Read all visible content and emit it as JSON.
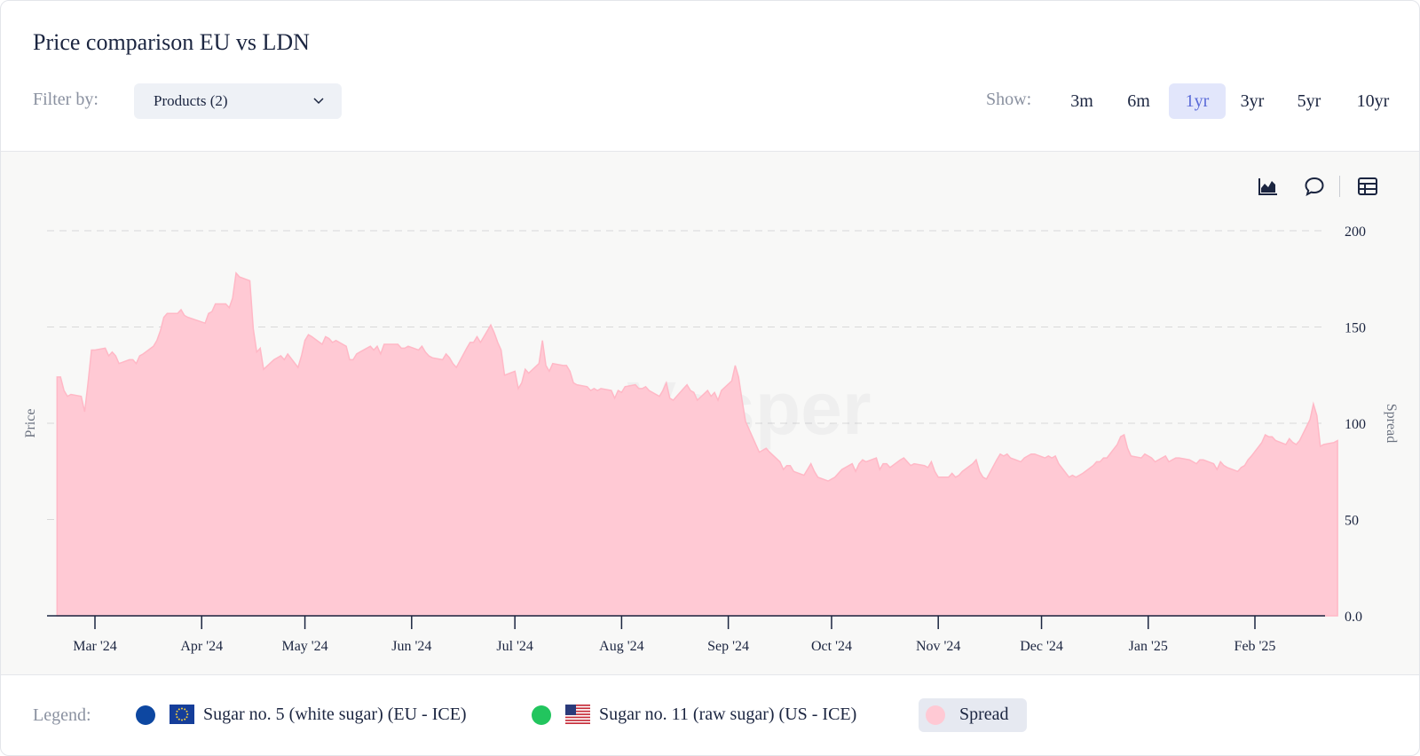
{
  "header": {
    "title": "Price comparison EU vs LDN",
    "filter_label": "Filter by:",
    "filter_value": "Products (2)",
    "show_label": "Show:",
    "ranges": [
      "3m",
      "6m",
      "1yr",
      "3yr",
      "5yr",
      "10yr"
    ],
    "active_range": "1yr"
  },
  "toolbar": {
    "icons": [
      "area-chart-icon",
      "comment-icon",
      "table-icon"
    ]
  },
  "legend": {
    "label": "Legend:",
    "items": [
      {
        "label": "Sugar no. 5 (white sugar) (EU - ICE)",
        "color": "#0d47a1",
        "flag": "eu-flag-icon"
      },
      {
        "label": "Sugar no. 11 (raw sugar) (US - ICE)",
        "color": "#22c55e",
        "flag": "us-flag-icon"
      },
      {
        "label": "Spread",
        "color": "#ffc9d4"
      }
    ]
  },
  "watermark": "Vesper",
  "chart_data": {
    "type": "area",
    "ylabel_left": "Price",
    "ylabel_right": "Spread",
    "ylim": [
      0,
      200
    ],
    "yticks": [
      "0.0",
      "50",
      "100",
      "150",
      "200"
    ],
    "grid": true,
    "xticks": [
      "Mar '24",
      "Apr '24",
      "May '24",
      "Jun '24",
      "Jul '24",
      "Aug '24",
      "Sep '24",
      "Oct '24",
      "Nov '24",
      "Dec '24",
      "Jan '25",
      "Feb '25"
    ],
    "series": [
      {
        "name": "Spread",
        "color": "#ffc9d4",
        "points": [
          [
            "2024-02-19",
            124
          ],
          [
            "2024-02-20",
            124
          ],
          [
            "2024-02-21",
            117
          ],
          [
            "2024-02-22",
            114
          ],
          [
            "2024-02-23",
            115
          ],
          [
            "2024-02-26",
            114
          ],
          [
            "2024-02-27",
            106
          ],
          [
            "2024-02-28",
            121
          ],
          [
            "2024-02-29",
            138
          ],
          [
            "2024-03-01",
            138
          ],
          [
            "2024-03-04",
            139
          ],
          [
            "2024-03-05",
            135
          ],
          [
            "2024-03-06",
            137
          ],
          [
            "2024-03-07",
            135
          ],
          [
            "2024-03-08",
            131
          ],
          [
            "2024-03-11",
            133
          ],
          [
            "2024-03-12",
            133
          ],
          [
            "2024-03-13",
            131
          ],
          [
            "2024-03-14",
            135
          ],
          [
            "2024-03-15",
            136
          ],
          [
            "2024-03-18",
            140
          ],
          [
            "2024-03-19",
            143
          ],
          [
            "2024-03-20",
            148
          ],
          [
            "2024-03-21",
            155
          ],
          [
            "2024-03-22",
            157
          ],
          [
            "2024-03-25",
            157
          ],
          [
            "2024-03-26",
            159
          ],
          [
            "2024-03-27",
            156
          ],
          [
            "2024-03-28",
            155
          ],
          [
            "2024-04-02",
            152
          ],
          [
            "2024-04-03",
            157
          ],
          [
            "2024-04-04",
            158
          ],
          [
            "2024-04-05",
            162
          ],
          [
            "2024-04-08",
            162
          ],
          [
            "2024-04-09",
            160
          ],
          [
            "2024-04-10",
            165
          ],
          [
            "2024-04-11",
            178
          ],
          [
            "2024-04-12",
            176
          ],
          [
            "2024-04-15",
            174
          ],
          [
            "2024-04-16",
            149
          ],
          [
            "2024-04-17",
            137
          ],
          [
            "2024-04-18",
            139
          ],
          [
            "2024-04-19",
            128
          ],
          [
            "2024-04-22",
            133
          ],
          [
            "2024-04-23",
            134
          ],
          [
            "2024-04-24",
            135
          ],
          [
            "2024-04-25",
            133
          ],
          [
            "2024-04-26",
            136
          ],
          [
            "2024-04-29",
            129
          ],
          [
            "2024-04-30",
            135
          ],
          [
            "2024-05-01",
            143
          ],
          [
            "2024-05-02",
            146
          ],
          [
            "2024-05-03",
            145
          ],
          [
            "2024-05-06",
            141
          ],
          [
            "2024-05-07",
            145
          ],
          [
            "2024-05-08",
            144
          ],
          [
            "2024-05-09",
            142
          ],
          [
            "2024-05-10",
            143
          ],
          [
            "2024-05-13",
            140
          ],
          [
            "2024-05-14",
            133
          ],
          [
            "2024-05-15",
            133
          ],
          [
            "2024-05-16",
            136
          ],
          [
            "2024-05-17",
            137
          ],
          [
            "2024-05-20",
            140
          ],
          [
            "2024-05-21",
            138
          ],
          [
            "2024-05-22",
            140
          ],
          [
            "2024-05-23",
            136
          ],
          [
            "2024-05-24",
            141
          ],
          [
            "2024-05-27",
            141
          ],
          [
            "2024-05-28",
            141
          ],
          [
            "2024-05-29",
            139
          ],
          [
            "2024-05-30",
            139
          ],
          [
            "2024-05-31",
            140
          ],
          [
            "2024-06-03",
            138
          ],
          [
            "2024-06-04",
            140
          ],
          [
            "2024-06-05",
            137
          ],
          [
            "2024-06-06",
            135
          ],
          [
            "2024-06-07",
            134
          ],
          [
            "2024-06-10",
            133
          ],
          [
            "2024-06-11",
            136
          ],
          [
            "2024-06-12",
            134
          ],
          [
            "2024-06-13",
            131
          ],
          [
            "2024-06-14",
            129
          ],
          [
            "2024-06-17",
            139
          ],
          [
            "2024-06-18",
            142
          ],
          [
            "2024-06-19",
            142
          ],
          [
            "2024-06-20",
            145
          ],
          [
            "2024-06-21",
            142
          ],
          [
            "2024-06-24",
            151
          ],
          [
            "2024-06-25",
            147
          ],
          [
            "2024-06-26",
            142
          ],
          [
            "2024-06-27",
            138
          ],
          [
            "2024-06-28",
            125
          ],
          [
            "2024-07-01",
            127
          ],
          [
            "2024-07-02",
            118
          ],
          [
            "2024-07-03",
            121
          ],
          [
            "2024-07-04",
            128
          ],
          [
            "2024-07-05",
            126
          ],
          [
            "2024-07-08",
            131
          ],
          [
            "2024-07-09",
            143
          ],
          [
            "2024-07-10",
            130
          ],
          [
            "2024-07-11",
            127
          ],
          [
            "2024-07-12",
            131
          ],
          [
            "2024-07-15",
            130
          ],
          [
            "2024-07-16",
            130
          ],
          [
            "2024-07-17",
            127
          ],
          [
            "2024-07-18",
            121
          ],
          [
            "2024-07-19",
            120
          ],
          [
            "2024-07-22",
            119
          ],
          [
            "2024-07-23",
            117
          ],
          [
            "2024-07-24",
            118
          ],
          [
            "2024-07-25",
            117
          ],
          [
            "2024-07-26",
            118
          ],
          [
            "2024-07-29",
            117
          ],
          [
            "2024-07-30",
            113
          ],
          [
            "2024-07-31",
            117
          ],
          [
            "2024-08-01",
            116
          ],
          [
            "2024-08-02",
            119
          ],
          [
            "2024-08-05",
            120
          ],
          [
            "2024-08-06",
            118
          ],
          [
            "2024-08-07",
            118
          ],
          [
            "2024-08-08",
            119
          ],
          [
            "2024-08-09",
            117
          ],
          [
            "2024-08-12",
            114
          ],
          [
            "2024-08-13",
            117
          ],
          [
            "2024-08-14",
            121
          ],
          [
            "2024-08-15",
            113
          ],
          [
            "2024-08-16",
            112
          ],
          [
            "2024-08-19",
            118
          ],
          [
            "2024-08-20",
            120
          ],
          [
            "2024-08-21",
            117
          ],
          [
            "2024-08-22",
            116
          ],
          [
            "2024-08-23",
            112
          ],
          [
            "2024-08-26",
            117
          ],
          [
            "2024-08-27",
            114
          ],
          [
            "2024-08-28",
            116
          ],
          [
            "2024-08-29",
            112
          ],
          [
            "2024-08-30",
            117
          ],
          [
            "2024-09-02",
            122
          ],
          [
            "2024-09-03",
            130
          ],
          [
            "2024-09-04",
            124
          ],
          [
            "2024-09-05",
            112
          ],
          [
            "2024-09-06",
            101
          ],
          [
            "2024-09-09",
            89
          ],
          [
            "2024-09-10",
            85
          ],
          [
            "2024-09-11",
            86
          ],
          [
            "2024-09-12",
            87
          ],
          [
            "2024-09-13",
            85
          ],
          [
            "2024-09-16",
            80
          ],
          [
            "2024-09-17",
            76
          ],
          [
            "2024-09-18",
            78
          ],
          [
            "2024-09-19",
            78
          ],
          [
            "2024-09-20",
            75
          ],
          [
            "2024-09-23",
            73
          ],
          [
            "2024-09-24",
            76
          ],
          [
            "2024-09-25",
            79
          ],
          [
            "2024-09-26",
            75
          ],
          [
            "2024-09-27",
            72
          ],
          [
            "2024-09-30",
            70
          ],
          [
            "2024-10-01",
            71
          ],
          [
            "2024-10-02",
            72
          ],
          [
            "2024-10-03",
            74
          ],
          [
            "2024-10-04",
            76
          ],
          [
            "2024-10-07",
            79
          ],
          [
            "2024-10-08",
            75
          ],
          [
            "2024-10-09",
            79
          ],
          [
            "2024-10-10",
            81
          ],
          [
            "2024-10-11",
            80
          ],
          [
            "2024-10-14",
            82
          ],
          [
            "2024-10-15",
            76
          ],
          [
            "2024-10-16",
            79
          ],
          [
            "2024-10-17",
            79
          ],
          [
            "2024-10-18",
            77
          ],
          [
            "2024-10-21",
            81
          ],
          [
            "2024-10-22",
            82
          ],
          [
            "2024-10-23",
            80
          ],
          [
            "2024-10-24",
            78
          ],
          [
            "2024-10-25",
            79
          ],
          [
            "2024-10-28",
            78
          ],
          [
            "2024-10-29",
            77
          ],
          [
            "2024-10-30",
            80
          ],
          [
            "2024-10-31",
            75
          ],
          [
            "2024-11-01",
            72
          ],
          [
            "2024-11-04",
            72
          ],
          [
            "2024-11-05",
            74
          ],
          [
            "2024-11-06",
            72
          ],
          [
            "2024-11-07",
            73
          ],
          [
            "2024-11-08",
            75
          ],
          [
            "2024-11-11",
            79
          ],
          [
            "2024-11-12",
            81
          ],
          [
            "2024-11-13",
            75
          ],
          [
            "2024-11-14",
            72
          ],
          [
            "2024-11-15",
            71
          ],
          [
            "2024-11-18",
            81
          ],
          [
            "2024-11-19",
            84
          ],
          [
            "2024-11-20",
            83
          ],
          [
            "2024-11-21",
            84
          ],
          [
            "2024-11-22",
            82
          ],
          [
            "2024-11-25",
            80
          ],
          [
            "2024-11-26",
            82
          ],
          [
            "2024-11-27",
            83
          ],
          [
            "2024-11-28",
            84
          ],
          [
            "2024-11-29",
            84
          ],
          [
            "2024-12-02",
            82
          ],
          [
            "2024-12-03",
            83
          ],
          [
            "2024-12-04",
            82
          ],
          [
            "2024-12-05",
            83
          ],
          [
            "2024-12-06",
            79
          ],
          [
            "2024-12-09",
            72
          ],
          [
            "2024-12-10",
            73
          ],
          [
            "2024-12-11",
            72
          ],
          [
            "2024-12-12",
            73
          ],
          [
            "2024-12-13",
            74
          ],
          [
            "2024-12-16",
            78
          ],
          [
            "2024-12-17",
            80
          ],
          [
            "2024-12-18",
            80
          ],
          [
            "2024-12-19",
            82
          ],
          [
            "2024-12-20",
            82
          ],
          [
            "2024-12-23",
            89
          ],
          [
            "2024-12-24",
            93
          ],
          [
            "2024-12-25",
            94
          ],
          [
            "2024-12-26",
            87
          ],
          [
            "2024-12-27",
            83
          ],
          [
            "2024-12-30",
            82
          ],
          [
            "2024-12-31",
            84
          ],
          [
            "2025-01-01",
            83
          ],
          [
            "2025-01-02",
            82
          ],
          [
            "2025-01-03",
            80
          ],
          [
            "2025-01-06",
            83
          ],
          [
            "2025-01-07",
            80
          ],
          [
            "2025-01-08",
            81
          ],
          [
            "2025-01-09",
            82
          ],
          [
            "2025-01-10",
            82
          ],
          [
            "2025-01-13",
            81
          ],
          [
            "2025-01-14",
            80
          ],
          [
            "2025-01-15",
            79
          ],
          [
            "2025-01-16",
            81
          ],
          [
            "2025-01-17",
            81
          ],
          [
            "2025-01-20",
            79
          ],
          [
            "2025-01-21",
            76
          ],
          [
            "2025-01-22",
            80
          ],
          [
            "2025-01-23",
            78
          ],
          [
            "2025-01-24",
            77
          ],
          [
            "2025-01-27",
            75
          ],
          [
            "2025-01-28",
            77
          ],
          [
            "2025-01-29",
            78
          ],
          [
            "2025-01-30",
            81
          ],
          [
            "2025-01-31",
            83
          ],
          [
            "2025-02-03",
            90
          ],
          [
            "2025-02-04",
            94
          ],
          [
            "2025-02-05",
            93
          ],
          [
            "2025-02-06",
            93
          ],
          [
            "2025-02-07",
            91
          ],
          [
            "2025-02-10",
            89
          ],
          [
            "2025-02-11",
            92
          ],
          [
            "2025-02-12",
            90
          ],
          [
            "2025-02-13",
            89
          ],
          [
            "2025-02-14",
            91
          ],
          [
            "2025-02-17",
            102
          ],
          [
            "2025-02-18",
            110
          ],
          [
            "2025-02-19",
            104
          ],
          [
            "2025-02-20",
            88
          ],
          [
            "2025-02-21",
            89
          ],
          [
            "2025-02-24",
            90
          ],
          [
            "2025-02-25",
            91
          ]
        ]
      }
    ]
  }
}
